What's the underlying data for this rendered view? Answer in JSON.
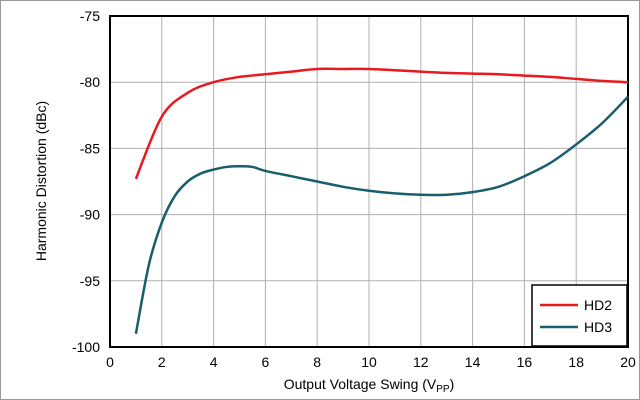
{
  "chart_data": {
    "type": "line",
    "xlabel": "Output Voltage Swing (V",
    "xlabel_sub": "PP",
    "xlabel_suffix": ")",
    "ylabel": "Harmonic Distortion (dBc)",
    "xlim": [
      0,
      20
    ],
    "ylim": [
      -100,
      -75
    ],
    "x_ticks": [
      "0",
      "2",
      "4",
      "6",
      "8",
      "10",
      "12",
      "14",
      "16",
      "18",
      "20"
    ],
    "y_ticks": [
      "-100",
      "-95",
      "-90",
      "-85",
      "-80",
      "-75"
    ],
    "grid": true,
    "legend_position": "bottom-right",
    "series": [
      {
        "name": "HD2",
        "color": "#e8191f",
        "x": [
          1,
          2,
          3,
          4,
          5,
          6,
          7,
          8,
          9,
          10,
          11,
          12,
          13,
          14,
          15,
          16,
          17,
          18,
          19,
          20
        ],
        "values": [
          -87.3,
          -82.6,
          -80.8,
          -80.0,
          -79.6,
          -79.4,
          -79.2,
          -79.0,
          -79.0,
          -79.0,
          -79.1,
          -79.2,
          -79.3,
          -79.35,
          -79.4,
          -79.5,
          -79.6,
          -79.75,
          -79.9,
          -80.0
        ]
      },
      {
        "name": "HD3",
        "color": "#185e6c",
        "x": [
          1,
          1.5,
          2,
          2.5,
          3,
          3.5,
          4,
          4.5,
          5,
          5.5,
          6,
          7,
          8,
          9,
          10,
          11,
          12,
          13,
          14,
          15,
          16,
          17,
          18,
          19,
          20
        ],
        "values": [
          -99.0,
          -93.8,
          -90.6,
          -88.6,
          -87.5,
          -86.9,
          -86.6,
          -86.4,
          -86.35,
          -86.4,
          -86.7,
          -87.1,
          -87.5,
          -87.9,
          -88.2,
          -88.4,
          -88.5,
          -88.5,
          -88.3,
          -87.9,
          -87.1,
          -86.1,
          -84.7,
          -83.1,
          -81.1
        ]
      }
    ]
  }
}
